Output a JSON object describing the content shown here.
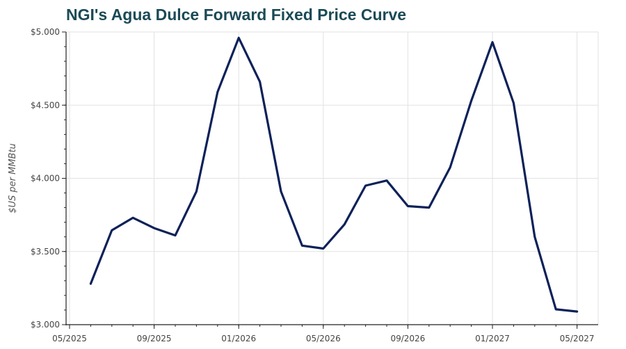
{
  "chart_data": {
    "type": "line",
    "title": "NGI's Agua Dulce Forward Fixed Price Curve",
    "xlabel": "",
    "ylabel": "$US per MMBtu",
    "x": [
      "2025-06",
      "2025-07",
      "2025-08",
      "2025-09",
      "2025-10",
      "2025-11",
      "2025-12",
      "2026-01",
      "2026-02",
      "2026-03",
      "2026-04",
      "2026-05",
      "2026-06",
      "2026-07",
      "2026-08",
      "2026-09",
      "2026-10",
      "2026-11",
      "2026-12",
      "2027-01",
      "2027-02",
      "2027-03",
      "2027-04",
      "2027-05"
    ],
    "series": [
      {
        "values": [
          3.28,
          3.645,
          3.73,
          3.66,
          3.61,
          3.91,
          4.59,
          4.96,
          4.66,
          3.91,
          3.54,
          3.52,
          3.685,
          3.95,
          3.985,
          3.81,
          3.8,
          4.075,
          4.53,
          4.93,
          4.515,
          3.6,
          3.105,
          3.09
        ],
        "color": "#0d2159"
      }
    ],
    "ylim": [
      3.0,
      5.0
    ],
    "yticks": [
      3.0,
      3.5,
      4.0,
      4.5,
      5.0
    ],
    "ytick_labels": [
      "$3.000",
      "$3.500",
      "$4.000",
      "$4.500",
      "$5.000"
    ],
    "xticks": [
      "2025-05",
      "2025-09",
      "2026-01",
      "2026-05",
      "2026-09",
      "2027-01",
      "2027-05"
    ],
    "xtick_labels": [
      "05/2025",
      "09/2025",
      "01/2026",
      "05/2026",
      "09/2026",
      "01/2027",
      "05/2027"
    ],
    "grid": true,
    "grid_color": "#e2e2e2",
    "axis_color": "#222222"
  }
}
